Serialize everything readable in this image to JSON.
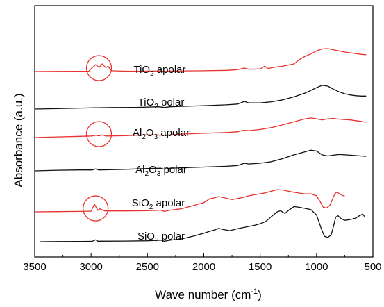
{
  "chart_data": {
    "type": "line",
    "xlabel": {
      "text": "Wave number (cm",
      "sup": "-1",
      "tail": ")"
    },
    "ylabel": "Absorbance (a.u.)",
    "xlim": [
      3500,
      500
    ],
    "x_ticks": [
      "3500",
      "3000",
      "2500",
      "2000",
      "1500",
      "1000",
      "500"
    ],
    "x_tick_values": [
      3500,
      3000,
      2500,
      2000,
      1500,
      1000,
      500
    ],
    "y_ticks_shown": false,
    "grid": false,
    "colors": {
      "apolar": "#e8322f",
      "polar": "#111111",
      "circle": "#e8322f"
    },
    "series": [
      {
        "name": "TiO2 apolar",
        "label": {
          "a": "TiO",
          "sub": "2",
          "b": " apolar",
          "c": "",
          "d": ""
        },
        "color": "#e8322f",
        "offset": 5,
        "points": [
          [
            3500,
            0.0
          ],
          [
            3300,
            0.02
          ],
          [
            3100,
            0.03
          ],
          [
            3020,
            0.05
          ],
          [
            2990,
            0.5
          ],
          [
            2960,
            0.9
          ],
          [
            2930,
            0.55
          ],
          [
            2900,
            1.0
          ],
          [
            2870,
            0.5
          ],
          [
            2850,
            0.7
          ],
          [
            2820,
            0.1
          ],
          [
            2700,
            0.05
          ],
          [
            2500,
            0.05
          ],
          [
            2380,
            0.08
          ],
          [
            2350,
            0.0
          ],
          [
            2300,
            0.06
          ],
          [
            2000,
            0.1
          ],
          [
            1800,
            0.15
          ],
          [
            1700,
            0.25
          ],
          [
            1640,
            0.45
          ],
          [
            1600,
            0.3
          ],
          [
            1500,
            0.35
          ],
          [
            1460,
            0.7
          ],
          [
            1430,
            0.4
          ],
          [
            1380,
            0.55
          ],
          [
            1300,
            0.7
          ],
          [
            1200,
            1.0
          ],
          [
            1150,
            1.6
          ],
          [
            1100,
            2.0
          ],
          [
            1050,
            2.3
          ],
          [
            1000,
            2.7
          ],
          [
            950,
            2.95
          ],
          [
            900,
            3.0
          ],
          [
            850,
            2.85
          ],
          [
            800,
            2.7
          ],
          [
            750,
            2.55
          ],
          [
            700,
            2.45
          ],
          [
            650,
            2.35
          ],
          [
            600,
            2.25
          ],
          [
            560,
            2.2
          ]
        ]
      },
      {
        "name": "TiO2 polar",
        "label": {
          "a": "TiO",
          "sub": "2",
          "b": " polar",
          "c": "",
          "d": ""
        },
        "color": "#111111",
        "offset": 4,
        "points": [
          [
            3500,
            0.0
          ],
          [
            3300,
            0.05
          ],
          [
            3000,
            0.15
          ],
          [
            2800,
            0.2
          ],
          [
            2600,
            0.22
          ],
          [
            2400,
            0.3
          ],
          [
            2350,
            0.2
          ],
          [
            2300,
            0.3
          ],
          [
            2000,
            0.45
          ],
          [
            1800,
            0.55
          ],
          [
            1700,
            0.65
          ],
          [
            1640,
            1.0
          ],
          [
            1600,
            0.8
          ],
          [
            1500,
            0.8
          ],
          [
            1400,
            0.95
          ],
          [
            1300,
            1.2
          ],
          [
            1200,
            1.6
          ],
          [
            1100,
            2.1
          ],
          [
            1000,
            2.8
          ],
          [
            950,
            3.1
          ],
          [
            900,
            3.0
          ],
          [
            850,
            2.6
          ],
          [
            800,
            2.25
          ],
          [
            750,
            2.0
          ],
          [
            700,
            1.85
          ],
          [
            650,
            1.75
          ],
          [
            600,
            1.7
          ],
          [
            560,
            1.7
          ]
        ]
      },
      {
        "name": "Al2O3 apolar",
        "label": {
          "a": "Al",
          "sub": "2",
          "b": "O",
          "c": "3",
          "d": " apolar"
        },
        "color": "#e8322f",
        "offset": 3,
        "points": [
          [
            3500,
            0.0
          ],
          [
            3300,
            0.08
          ],
          [
            3100,
            0.15
          ],
          [
            2990,
            0.2
          ],
          [
            2960,
            0.3
          ],
          [
            2930,
            0.22
          ],
          [
            2900,
            0.35
          ],
          [
            2870,
            0.2
          ],
          [
            2700,
            0.25
          ],
          [
            2500,
            0.35
          ],
          [
            2350,
            0.3
          ],
          [
            2200,
            0.45
          ],
          [
            2000,
            0.55
          ],
          [
            1800,
            0.65
          ],
          [
            1700,
            0.75
          ],
          [
            1650,
            0.95
          ],
          [
            1600,
            0.9
          ],
          [
            1500,
            1.05
          ],
          [
            1400,
            1.3
          ],
          [
            1300,
            1.65
          ],
          [
            1200,
            2.05
          ],
          [
            1100,
            2.45
          ],
          [
            1050,
            2.55
          ],
          [
            1000,
            2.45
          ],
          [
            950,
            2.3
          ],
          [
            900,
            2.45
          ],
          [
            850,
            2.5
          ],
          [
            800,
            2.4
          ],
          [
            750,
            2.35
          ],
          [
            700,
            2.3
          ],
          [
            650,
            2.2
          ],
          [
            600,
            2.1
          ],
          [
            560,
            2.0
          ]
        ]
      },
      {
        "name": "Al2O3 polar",
        "label": {
          "a": "Al",
          "sub": "2",
          "b": "O",
          "c": "3",
          "d": " polar"
        },
        "color": "#111111",
        "offset": 2,
        "points": [
          [
            3500,
            0.0
          ],
          [
            3300,
            0.08
          ],
          [
            3100,
            0.12
          ],
          [
            2990,
            0.12
          ],
          [
            2960,
            0.25
          ],
          [
            2930,
            0.12
          ],
          [
            2700,
            0.2
          ],
          [
            2500,
            0.3
          ],
          [
            2380,
            0.35
          ],
          [
            2350,
            0.2
          ],
          [
            2300,
            0.35
          ],
          [
            2000,
            0.5
          ],
          [
            1800,
            0.6
          ],
          [
            1700,
            0.7
          ],
          [
            1640,
            1.0
          ],
          [
            1600,
            0.9
          ],
          [
            1500,
            1.0
          ],
          [
            1400,
            1.2
          ],
          [
            1300,
            1.6
          ],
          [
            1200,
            2.1
          ],
          [
            1100,
            2.5
          ],
          [
            1050,
            2.7
          ],
          [
            1000,
            2.6
          ],
          [
            950,
            2.1
          ],
          [
            900,
            1.95
          ],
          [
            850,
            2.05
          ],
          [
            800,
            2.15
          ],
          [
            750,
            2.1
          ],
          [
            700,
            2.05
          ],
          [
            650,
            2.0
          ],
          [
            600,
            1.95
          ],
          [
            560,
            1.9
          ]
        ]
      },
      {
        "name": "SiO2 apolar",
        "label": {
          "a": "SiO",
          "sub": "2",
          "b": " apolar",
          "c": "",
          "d": ""
        },
        "color": "#e8322f",
        "offset": 1,
        "points": [
          [
            3500,
            0.0
          ],
          [
            3300,
            0.03
          ],
          [
            3100,
            0.05
          ],
          [
            3000,
            0.08
          ],
          [
            2970,
            1.0
          ],
          [
            2940,
            0.2
          ],
          [
            2920,
            0.4
          ],
          [
            2880,
            0.12
          ],
          [
            2700,
            0.12
          ],
          [
            2500,
            0.15
          ],
          [
            2380,
            0.22
          ],
          [
            2350,
            0.05
          ],
          [
            2300,
            0.22
          ],
          [
            2200,
            0.4
          ],
          [
            2100,
            0.8
          ],
          [
            2000,
            1.2
          ],
          [
            1950,
            1.7
          ],
          [
            1900,
            1.85
          ],
          [
            1870,
            2.0
          ],
          [
            1820,
            1.85
          ],
          [
            1750,
            1.6
          ],
          [
            1700,
            1.75
          ],
          [
            1650,
            1.9
          ],
          [
            1600,
            2.1
          ],
          [
            1550,
            2.25
          ],
          [
            1500,
            2.35
          ],
          [
            1450,
            2.5
          ],
          [
            1400,
            2.7
          ],
          [
            1350,
            2.9
          ],
          [
            1300,
            2.85
          ],
          [
            1250,
            2.7
          ],
          [
            1200,
            2.55
          ],
          [
            1150,
            2.45
          ],
          [
            1100,
            2.35
          ],
          [
            1050,
            2.35
          ],
          [
            1000,
            2.1
          ],
          [
            970,
            1.4
          ],
          [
            940,
            0.6
          ],
          [
            910,
            0.5
          ],
          [
            880,
            0.9
          ],
          [
            860,
            1.6
          ],
          [
            840,
            2.3
          ],
          [
            820,
            2.6
          ],
          [
            800,
            2.4
          ],
          [
            770,
            2.15
          ],
          [
            750,
            2.05
          ]
        ]
      },
      {
        "name": "SiO2 polar",
        "label": {
          "a": "SiO",
          "sub": "2",
          "b": " polar",
          "c": "",
          "d": ""
        },
        "color": "#111111",
        "offset": 0,
        "points": [
          [
            3450,
            0.0
          ],
          [
            3300,
            0.02
          ],
          [
            3100,
            0.03
          ],
          [
            2990,
            0.05
          ],
          [
            2960,
            0.25
          ],
          [
            2940,
            0.06
          ],
          [
            2700,
            0.08
          ],
          [
            2500,
            0.12
          ],
          [
            2380,
            0.2
          ],
          [
            2350,
            0.05
          ],
          [
            2300,
            0.2
          ],
          [
            2200,
            0.35
          ],
          [
            2100,
            0.7
          ],
          [
            2000,
            1.1
          ],
          [
            1950,
            1.35
          ],
          [
            1900,
            1.55
          ],
          [
            1870,
            1.75
          ],
          [
            1830,
            1.6
          ],
          [
            1770,
            1.45
          ],
          [
            1700,
            1.7
          ],
          [
            1650,
            1.85
          ],
          [
            1600,
            2.0
          ],
          [
            1550,
            2.15
          ],
          [
            1500,
            2.35
          ],
          [
            1450,
            2.65
          ],
          [
            1400,
            3.3
          ],
          [
            1350,
            3.9
          ],
          [
            1320,
            4.05
          ],
          [
            1280,
            3.7
          ],
          [
            1240,
            4.2
          ],
          [
            1200,
            4.6
          ],
          [
            1150,
            4.5
          ],
          [
            1100,
            4.35
          ],
          [
            1050,
            4.2
          ],
          [
            1000,
            3.5
          ],
          [
            960,
            1.8
          ],
          [
            930,
            0.7
          ],
          [
            900,
            0.55
          ],
          [
            870,
            0.9
          ],
          [
            850,
            2.0
          ],
          [
            830,
            3.2
          ],
          [
            810,
            3.4
          ],
          [
            780,
            3.0
          ],
          [
            750,
            2.8
          ],
          [
            700,
            2.9
          ],
          [
            650,
            3.1
          ],
          [
            620,
            3.4
          ],
          [
            590,
            3.6
          ],
          [
            575,
            3.3
          ]
        ]
      }
    ],
    "circles": [
      {
        "x": 2930,
        "series": "TiO2 apolar"
      },
      {
        "x": 2930,
        "series": "Al2O3 apolar"
      },
      {
        "x": 2960,
        "series": "SiO2 apolar"
      }
    ]
  }
}
